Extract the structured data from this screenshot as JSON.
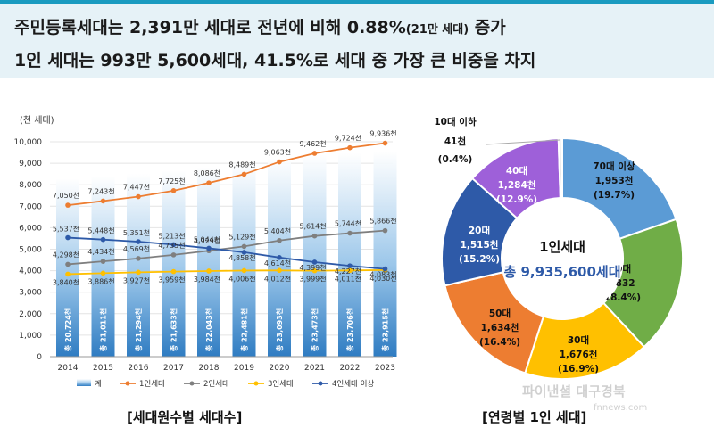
{
  "banner": {
    "line1_main": "주민등록세대는 2,391만 세대로 전년에 비해 0.88%",
    "line1_small": "(21만 세대)",
    "line1_end": " 증가",
    "line2": "1인 세대는 993만 5,600세대, 41.5%로 세대 중 가장 큰 비중을 차지"
  },
  "watermark": {
    "text": "파이낸셜 대구경북",
    "sub": "fnnews.com"
  },
  "chart_data": [
    {
      "type": "bar",
      "unit_label": "(천 세대)",
      "caption": "[세대원수별 세대수]",
      "ylim": [
        0,
        10000
      ],
      "yticks": [
        "0",
        "1,000",
        "2,000",
        "3,000",
        "4,000",
        "5,000",
        "6,000",
        "7,000",
        "8,000",
        "9,000",
        "10,000"
      ],
      "categories": [
        "2014",
        "2015",
        "2016",
        "2017",
        "2018",
        "2019",
        "2020",
        "2021",
        "2022",
        "2023"
      ],
      "bars": {
        "name": "계",
        "values": [
          20724,
          21011,
          21294,
          21633,
          22043,
          22481,
          23093,
          23473,
          23706,
          23915
        ],
        "labels": [
          "총 20,724천",
          "총 21,011천",
          "총 21,294천",
          "총 21,633천",
          "총 22,043천",
          "총 22,481천",
          "총 23,093천",
          "총 23,473천",
          "총 23,706천",
          "총 23,915천"
        ]
      },
      "series": [
        {
          "name": "1인세대",
          "color": "#ed7d31",
          "values": [
            7050,
            7243,
            7447,
            7725,
            8086,
            8489,
            9063,
            9462,
            9724,
            9936
          ],
          "labels": [
            "7,050천",
            "7,243천",
            "7,447천",
            "7,725천",
            "8,086천",
            "8,489천",
            "9,063천",
            "9,462천",
            "9,724천",
            "9,936천"
          ]
        },
        {
          "name": "2인세대",
          "color": "#7f7f7f",
          "values": [
            4298,
            4434,
            4569,
            4735,
            4929,
            5129,
            5404,
            5614,
            5744,
            5866
          ],
          "labels": [
            "4,298천",
            "4,434천",
            "4,569천",
            "4,735천",
            "4,929천",
            "5,129천",
            "5,404천",
            "5,614천",
            "5,744천",
            "5,866천"
          ]
        },
        {
          "name": "3인세대",
          "color": "#ffc000",
          "values": [
            3840,
            3886,
            3927,
            3959,
            3984,
            4006,
            4012,
            3999,
            4011,
            4030
          ],
          "labels": [
            "3,840천",
            "3,886천",
            "3,927천",
            "3,959천",
            "3,984천",
            "4,006천",
            "4,012천",
            "3,999천",
            "4,011천",
            "4,030천"
          ]
        },
        {
          "name": "4인세대 이상",
          "color": "#2e5aa8",
          "values": [
            5537,
            5448,
            5351,
            5213,
            5044,
            4858,
            4614,
            4399,
            4227,
            4083
          ],
          "labels": [
            "5,537천",
            "5,448천",
            "5,351천",
            "5,213천",
            "5,044천",
            "4,858천",
            "4,614천",
            "4,399천",
            "4,227천",
            "4,083천"
          ]
        }
      ],
      "legend": [
        "계",
        "1인세대",
        "2인세대",
        "3인세대",
        "4인세대 이상"
      ]
    },
    {
      "type": "pie",
      "caption": "[연령별 1인 세대]",
      "center_title": "1인세대",
      "center_total": "총 9,935,600세대",
      "slices": [
        {
          "name": "70대 이상",
          "value_label": "1,953천",
          "percent": 19.7,
          "pct_label": "(19.7%)",
          "color": "#5b9bd5"
        },
        {
          "name": "60대",
          "value_label": "1,832",
          "percent": 18.4,
          "pct_label": "(18.4%)",
          "color": "#70ad47"
        },
        {
          "name": "30대",
          "value_label": "1,676천",
          "percent": 16.9,
          "pct_label": "(16.9%)",
          "color": "#ffc000"
        },
        {
          "name": "50대",
          "value_label": "1,634천",
          "percent": 16.4,
          "pct_label": "(16.4%)",
          "color": "#ed7d31"
        },
        {
          "name": "20대",
          "value_label": "1,515천",
          "percent": 15.2,
          "pct_label": "(15.2%)",
          "color": "#2e5aa8"
        },
        {
          "name": "40대",
          "value_label": "1,284천",
          "percent": 12.9,
          "pct_label": "(12.9%)",
          "color": "#9e60d9"
        },
        {
          "name": "10대 이하",
          "value_label": "41천",
          "percent": 0.4,
          "pct_label": "(0.4%)",
          "color": "#c9c9c9"
        }
      ]
    }
  ]
}
